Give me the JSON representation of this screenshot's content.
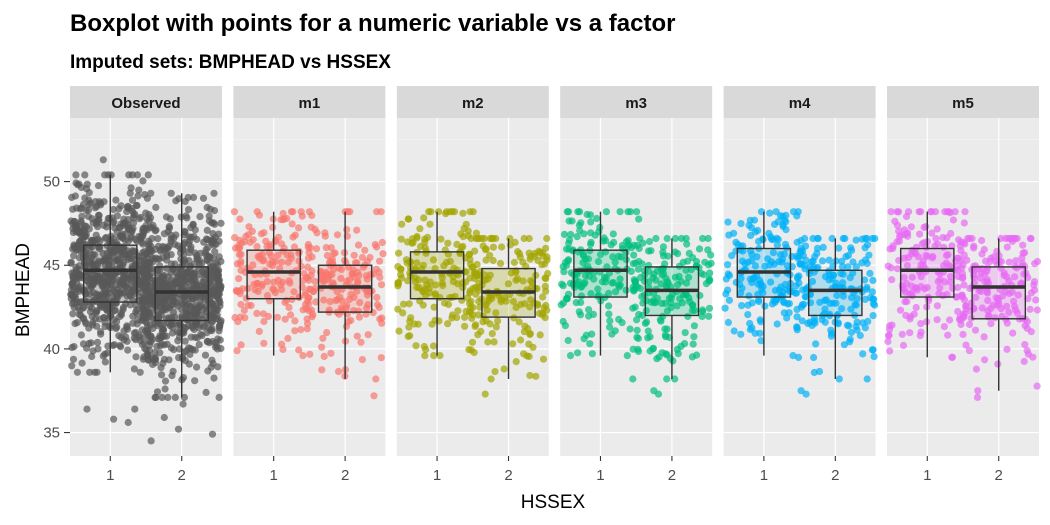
{
  "chart_data": {
    "type": "boxplot",
    "title": "Boxplot with points for a numeric variable vs a factor",
    "subtitle": "Imputed sets:  BMPHEAD vs HSSEX",
    "xlabel": "HSSEX",
    "ylabel": "BMPHEAD",
    "ylim": [
      33.6,
      53.8
    ],
    "yticks": [
      35,
      40,
      45,
      50
    ],
    "categories": [
      "1",
      "2"
    ],
    "panels": [
      {
        "label": "Observed",
        "color": "#595959",
        "groups": [
          {
            "category": "1",
            "min": 38.6,
            "q1": 42.8,
            "median": 44.7,
            "q3": 46.2,
            "max": 50.4,
            "n_points": 700,
            "outliers": [
              51.3,
              36.4,
              36.4,
              35.8,
              35.6
            ]
          },
          {
            "category": "2",
            "min": 37.1,
            "q1": 41.7,
            "median": 43.4,
            "q3": 44.9,
            "max": 49.3,
            "n_points": 700,
            "outliers": [
              36.7,
              35.9,
              35.2,
              34.9,
              34.5,
              37.4
            ]
          }
        ]
      },
      {
        "label": "m1",
        "color": "#F8766D",
        "groups": [
          {
            "category": "1",
            "min": 39.6,
            "q1": 43.0,
            "median": 44.6,
            "q3": 45.9,
            "max": 48.2,
            "n_points": 170,
            "outliers": []
          },
          {
            "category": "2",
            "min": 38.2,
            "q1": 42.2,
            "median": 43.7,
            "q3": 45.0,
            "max": 48.2,
            "n_points": 170,
            "outliers": [
              37.2
            ]
          }
        ]
      },
      {
        "label": "m2",
        "color": "#A3A500",
        "groups": [
          {
            "category": "1",
            "min": 39.6,
            "q1": 43.0,
            "median": 44.6,
            "q3": 45.8,
            "max": 48.2,
            "n_points": 170,
            "outliers": []
          },
          {
            "category": "2",
            "min": 38.2,
            "q1": 41.9,
            "median": 43.4,
            "q3": 44.8,
            "max": 46.6,
            "n_points": 170,
            "outliers": [
              37.3
            ]
          }
        ]
      },
      {
        "label": "m3",
        "color": "#00BF7D",
        "groups": [
          {
            "category": "1",
            "min": 39.6,
            "q1": 43.1,
            "median": 44.7,
            "q3": 45.9,
            "max": 48.2,
            "n_points": 170,
            "outliers": []
          },
          {
            "category": "2",
            "min": 38.2,
            "q1": 42.0,
            "median": 43.5,
            "q3": 44.9,
            "max": 46.6,
            "n_points": 170,
            "outliers": [
              37.5,
              37.3
            ]
          }
        ]
      },
      {
        "label": "m4",
        "color": "#00B0F6",
        "groups": [
          {
            "category": "1",
            "min": 39.6,
            "q1": 43.1,
            "median": 44.6,
            "q3": 46.0,
            "max": 48.2,
            "n_points": 170,
            "outliers": []
          },
          {
            "category": "2",
            "min": 38.2,
            "q1": 42.0,
            "median": 43.5,
            "q3": 44.7,
            "max": 46.6,
            "n_points": 170,
            "outliers": [
              37.5,
              37.3
            ]
          }
        ]
      },
      {
        "label": "m5",
        "color": "#E76BF3",
        "groups": [
          {
            "category": "1",
            "min": 39.5,
            "q1": 43.1,
            "median": 44.7,
            "q3": 46.0,
            "max": 48.2,
            "n_points": 170,
            "outliers": []
          },
          {
            "category": "2",
            "min": 37.5,
            "q1": 41.8,
            "median": 43.7,
            "q3": 44.9,
            "max": 46.6,
            "n_points": 170,
            "outliers": [
              37.1
            ]
          }
        ]
      }
    ]
  }
}
